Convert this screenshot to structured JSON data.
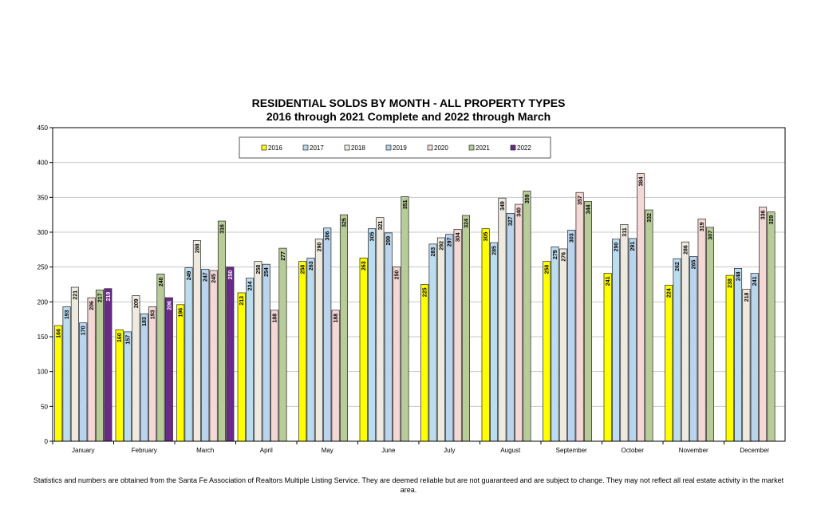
{
  "chart_data": {
    "type": "bar",
    "title": "RESIDENTIAL SOLDS BY MONTH - ALL PROPERTY TYPES",
    "subtitle": "2016 through 2021 Complete and 2022 through March",
    "xlabel": "",
    "ylabel": "",
    "ylim": [
      0,
      450
    ],
    "yticks": [
      "0",
      "50",
      "100",
      "150",
      "200",
      "250",
      "300",
      "350",
      "400",
      "450"
    ],
    "grid": true,
    "legend_position": "top",
    "categories": [
      "January",
      "February",
      "March",
      "April",
      "May",
      "June",
      "July",
      "August",
      "September",
      "October",
      "November",
      "December"
    ],
    "series": [
      {
        "name": "2016",
        "color": "#ffff00",
        "values": [
          166,
          160,
          196,
          213,
          258,
          263,
          225,
          305,
          258,
          241,
          224,
          238
        ]
      },
      {
        "name": "2017",
        "color": "#bcdcf0",
        "values": [
          193,
          157,
          249,
          234,
          263,
          305,
          283,
          285,
          279,
          290,
          262,
          248
        ]
      },
      {
        "name": "2018",
        "color": "#eeeadf",
        "values": [
          221,
          209,
          288,
          258,
          290,
          321,
          292,
          349,
          276,
          311,
          286,
          218
        ]
      },
      {
        "name": "2019",
        "color": "#b9d4ec",
        "values": [
          170,
          183,
          247,
          254,
          306,
          299,
          297,
          327,
          303,
          291,
          265,
          241
        ]
      },
      {
        "name": "2020",
        "color": "#f4d8d6",
        "values": [
          206,
          193,
          245,
          188,
          188,
          250,
          304,
          340,
          357,
          384,
          319,
          336
        ]
      },
      {
        "name": "2021",
        "color": "#b8cc98",
        "values": [
          217,
          240,
          316,
          277,
          325,
          351,
          324,
          359,
          344,
          332,
          307,
          329
        ]
      },
      {
        "name": "2022",
        "color": "#6a2a8a",
        "values": [
          219,
          206,
          250,
          null,
          null,
          null,
          null,
          null,
          null,
          null,
          null,
          null
        ]
      }
    ]
  },
  "footer": "Statistics and numbers are obtained from the Santa Fe Association of Realtors Multiple Listing Service. They are deemed reliable but are not guaranteed and are subject to change. They may not reflect all real estate activity in the market area."
}
